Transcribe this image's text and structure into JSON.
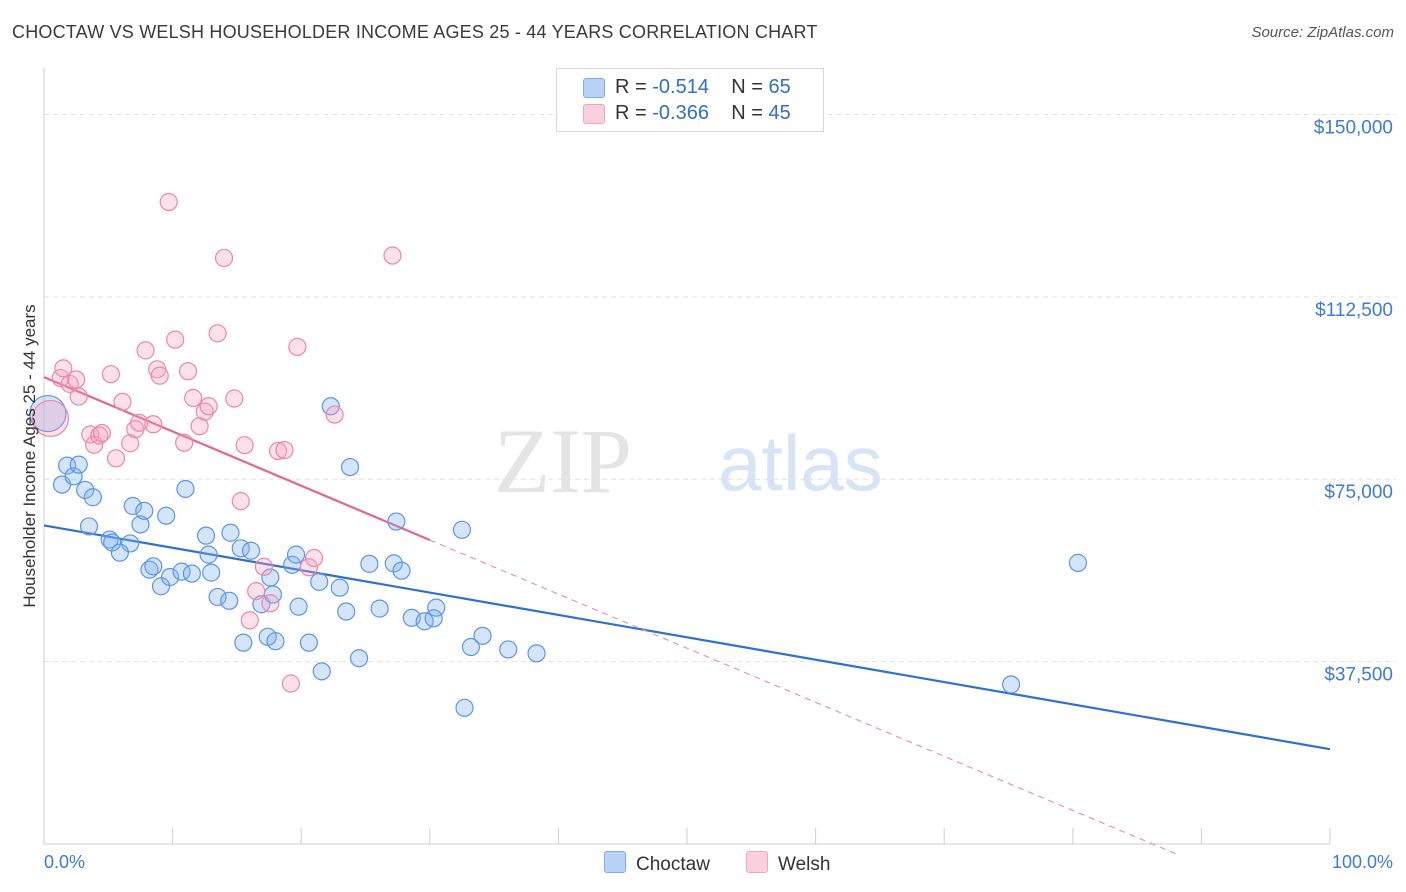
{
  "header": {
    "title": "CHOCTAW VS WELSH HOUSEHOLDER INCOME AGES 25 - 44 YEARS CORRELATION CHART",
    "source": "Source: ZipAtlas.com"
  },
  "watermark": {
    "part1": "ZIP",
    "part2": "atlas"
  },
  "legend": {
    "rows": [
      {
        "r_label": "R =",
        "r_value": "-0.514",
        "n_label": "N =",
        "n_value": "65",
        "color": "#a9c9f5"
      },
      {
        "r_label": "R =",
        "r_value": "-0.366",
        "n_label": "N =",
        "n_value": "45",
        "color": "#f7b8cc"
      }
    ]
  },
  "chart_data": {
    "type": "scatter",
    "title": "CHOCTAW VS WELSH HOUSEHOLDER INCOME AGES 25 - 44 YEARS CORRELATION CHART",
    "xlabel": "",
    "ylabel": "Householder Income Ages 25 - 44 years",
    "xlim": [
      0,
      100
    ],
    "ylim": [
      0,
      157500
    ],
    "x_tick_labels": [
      "0.0%",
      "100.0%"
    ],
    "y_ticks": [
      37500,
      75000,
      112500,
      150000
    ],
    "y_tick_labels": [
      "$37,500",
      "$75,000",
      "$112,500",
      "$150,000"
    ],
    "grid": true,
    "legend_position": "top-center",
    "series": [
      {
        "name": "Choctaw",
        "color": "#7aaef0",
        "stroke": "#5b95e6",
        "trend": {
          "x": [
            0,
            100
          ],
          "y": [
            65500,
            19500
          ],
          "color": "#2e6fd0",
          "dashed": false
        },
        "points": [
          [
            0.3,
            88500
          ],
          [
            1.8,
            77800
          ],
          [
            1.4,
            73900
          ],
          [
            2.3,
            75600
          ],
          [
            2.7,
            78000
          ],
          [
            3.2,
            72800
          ],
          [
            3.8,
            71300
          ],
          [
            3.5,
            65300
          ],
          [
            5.1,
            62600
          ],
          [
            5.3,
            62000
          ],
          [
            6.7,
            61800
          ],
          [
            5.9,
            59900
          ],
          [
            6.9,
            69500
          ],
          [
            7.5,
            65700
          ],
          [
            7.8,
            68500
          ],
          [
            8.2,
            56400
          ],
          [
            8.5,
            57100
          ],
          [
            9.5,
            67500
          ],
          [
            9.1,
            53000
          ],
          [
            9.8,
            54900
          ],
          [
            10.7,
            56000
          ],
          [
            11.0,
            73000
          ],
          [
            11.5,
            55600
          ],
          [
            12.6,
            63400
          ],
          [
            12.8,
            59500
          ],
          [
            13.0,
            55800
          ],
          [
            13.5,
            50800
          ],
          [
            14.4,
            50000
          ],
          [
            14.5,
            64000
          ],
          [
            15.3,
            60800
          ],
          [
            15.5,
            41400
          ],
          [
            16.1,
            60300
          ],
          [
            16.9,
            49300
          ],
          [
            17.8,
            51300
          ],
          [
            17.6,
            54800
          ],
          [
            17.4,
            42600
          ],
          [
            18.0,
            41700
          ],
          [
            19.3,
            57400
          ],
          [
            19.6,
            59500
          ],
          [
            19.8,
            48800
          ],
          [
            20.6,
            41400
          ],
          [
            21.6,
            35500
          ],
          [
            21.4,
            53900
          ],
          [
            22.3,
            90000
          ],
          [
            23.0,
            52700
          ],
          [
            23.5,
            47800
          ],
          [
            23.8,
            77500
          ],
          [
            24.5,
            38200
          ],
          [
            25.3,
            57600
          ],
          [
            26.1,
            48400
          ],
          [
            27.2,
            57700
          ],
          [
            27.4,
            66300
          ],
          [
            27.8,
            56200
          ],
          [
            28.6,
            46500
          ],
          [
            29.6,
            45800
          ],
          [
            30.5,
            48600
          ],
          [
            30.3,
            46400
          ],
          [
            32.5,
            64600
          ],
          [
            32.7,
            28000
          ],
          [
            33.2,
            40500
          ],
          [
            34.1,
            42800
          ],
          [
            36.1,
            40000
          ],
          [
            38.3,
            39200
          ],
          [
            80.4,
            57800
          ],
          [
            75.2,
            32800
          ]
        ]
      },
      {
        "name": "Welsh",
        "color": "#f5a3be",
        "stroke": "#ef86a9",
        "trend": {
          "x": [
            0,
            30
          ],
          "y": [
            96000,
            62500
          ],
          "color": "#e8648f",
          "dashed": false
        },
        "trend_extension": {
          "x": [
            30,
            88
          ],
          "y": [
            62500,
            -2000
          ],
          "color": "#e895b1",
          "dashed": true
        },
        "points": [
          [
            0.5,
            87500
          ],
          [
            1.3,
            95800
          ],
          [
            1.5,
            97800
          ],
          [
            2.0,
            94600
          ],
          [
            2.5,
            95500
          ],
          [
            2.7,
            92000
          ],
          [
            3.6,
            84200
          ],
          [
            3.9,
            82100
          ],
          [
            4.3,
            84000
          ],
          [
            4.5,
            84500
          ],
          [
            5.2,
            96600
          ],
          [
            5.6,
            79300
          ],
          [
            6.1,
            90900
          ],
          [
            6.7,
            82400
          ],
          [
            7.1,
            85300
          ],
          [
            7.4,
            86600
          ],
          [
            7.9,
            101500
          ],
          [
            8.5,
            86300
          ],
          [
            8.8,
            97600
          ],
          [
            9.0,
            96300
          ],
          [
            9.7,
            132000
          ],
          [
            10.2,
            103700
          ],
          [
            10.9,
            82500
          ],
          [
            11.2,
            97200
          ],
          [
            11.6,
            91700
          ],
          [
            12.1,
            85900
          ],
          [
            12.5,
            88900
          ],
          [
            12.8,
            90000
          ],
          [
            13.5,
            105000
          ],
          [
            14.0,
            120500
          ],
          [
            14.8,
            91600
          ],
          [
            15.3,
            70500
          ],
          [
            15.6,
            82000
          ],
          [
            16.0,
            46000
          ],
          [
            16.5,
            52000
          ],
          [
            17.1,
            57000
          ],
          [
            17.6,
            49500
          ],
          [
            18.2,
            80800
          ],
          [
            18.7,
            81000
          ],
          [
            19.2,
            33000
          ],
          [
            19.7,
            102200
          ],
          [
            20.6,
            56900
          ],
          [
            21.0,
            58800
          ],
          [
            22.6,
            88300
          ],
          [
            27.1,
            121000
          ]
        ]
      }
    ]
  }
}
